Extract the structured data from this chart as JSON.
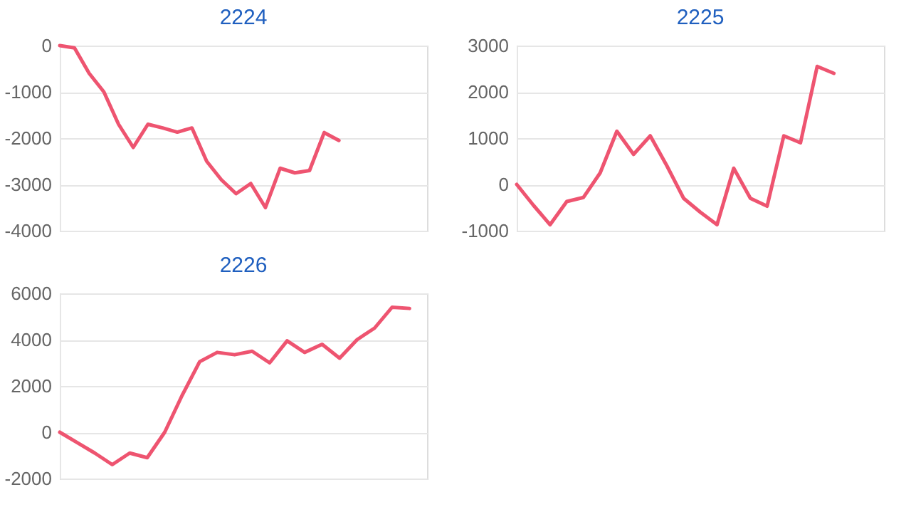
{
  "chart_data": [
    {
      "type": "line",
      "title": "2224",
      "categories": [
        null,
        null,
        null,
        null,
        null,
        null,
        null,
        null,
        null,
        null,
        null,
        null,
        null,
        null,
        null,
        null,
        null,
        null,
        null,
        null,
        null,
        null,
        null,
        null,
        null,
        null
      ],
      "series": [
        {
          "color": "#ee5470",
          "values": [
            0,
            -50,
            -600,
            -1000,
            -1700,
            -2200,
            -1700,
            -1780,
            -1870,
            -1780,
            -2500,
            -2900,
            -3200,
            -2980,
            -3500,
            -2650,
            -2750,
            -2700,
            -1880,
            -2050,
            null,
            null,
            null,
            null,
            null,
            null
          ]
        }
      ],
      "ylim": [
        -4000,
        0
      ],
      "yticks": [
        -4000,
        -3000,
        -2000,
        -1000,
        0
      ],
      "grid": "y",
      "tick_labels": "y",
      "legend": false,
      "marker": "none",
      "line_style": "solid"
    },
    {
      "type": "line",
      "title": "2225",
      "categories": [
        null,
        null,
        null,
        null,
        null,
        null,
        null,
        null,
        null,
        null,
        null,
        null,
        null,
        null,
        null,
        null,
        null,
        null,
        null,
        null,
        null,
        null,
        null
      ],
      "series": [
        {
          "color": "#ee5470",
          "values": [
            0,
            -450,
            -870,
            -370,
            -280,
            250,
            1150,
            650,
            1050,
            400,
            -300,
            -600,
            -870,
            350,
            -300,
            -470,
            1050,
            900,
            2550,
            2400,
            null,
            null,
            null
          ]
        }
      ],
      "ylim": [
        -1000,
        3000
      ],
      "yticks": [
        -1000,
        0,
        1000,
        2000,
        3000
      ],
      "grid": "y",
      "tick_labels": "y",
      "legend": false,
      "marker": "none",
      "line_style": "solid"
    },
    {
      "type": "line",
      "title": "2226",
      "categories": [
        null,
        null,
        null,
        null,
        null,
        null,
        null,
        null,
        null,
        null,
        null,
        null,
        null,
        null,
        null,
        null,
        null,
        null,
        null,
        null,
        null,
        null
      ],
      "series": [
        {
          "color": "#ee5470",
          "values": [
            0,
            -450,
            -900,
            -1400,
            -900,
            -1100,
            0,
            1600,
            3050,
            3450,
            3350,
            3500,
            3000,
            3950,
            3450,
            3800,
            3200,
            4000,
            4500,
            5400,
            5350,
            null
          ]
        }
      ],
      "ylim": [
        -2000,
        6000
      ],
      "yticks": [
        -2000,
        0,
        2000,
        4000,
        6000
      ],
      "grid": "y",
      "tick_labels": "y",
      "legend": false,
      "marker": "none",
      "line_style": "solid"
    }
  ]
}
